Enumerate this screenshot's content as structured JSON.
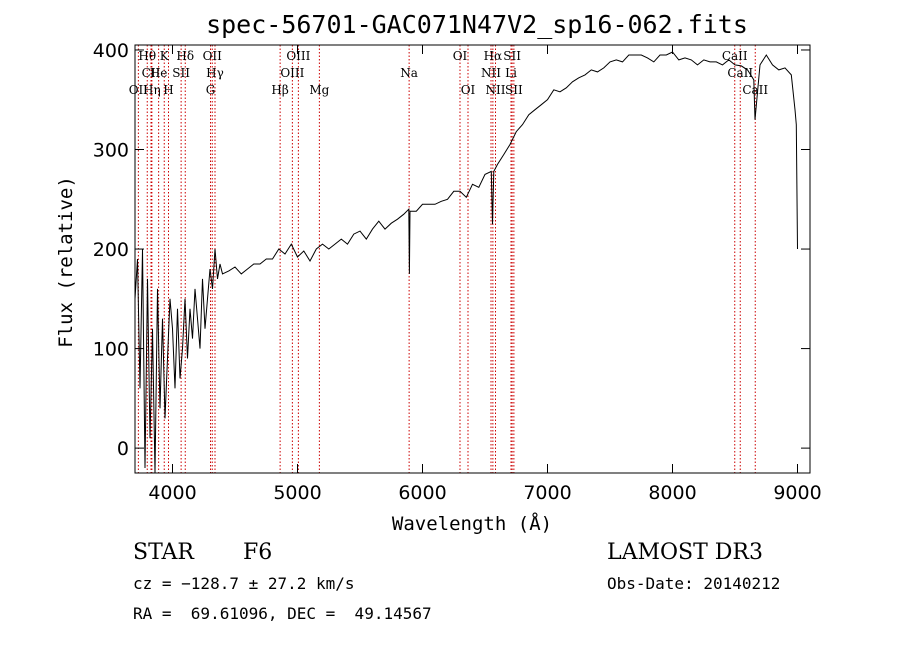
{
  "chart_data": {
    "type": "line",
    "title": "spec-56701-GAC071N47V2_sp16-062.fits",
    "xlabel": "Wavelength (Å)",
    "ylabel": "Flux (relative)",
    "xlim": [
      3700,
      9100
    ],
    "ylim": [
      -25,
      405
    ],
    "xticks": [
      4000,
      5000,
      6000,
      7000,
      8000,
      9000
    ],
    "yticks": [
      0,
      100,
      200,
      300,
      400
    ],
    "series": [
      {
        "name": "flux",
        "x": [
          3700,
          3720,
          3740,
          3760,
          3780,
          3800,
          3820,
          3840,
          3860,
          3880,
          3900,
          3920,
          3940,
          3960,
          3980,
          4000,
          4020,
          4040,
          4060,
          4080,
          4100,
          4120,
          4140,
          4160,
          4180,
          4200,
          4220,
          4240,
          4260,
          4280,
          4300,
          4320,
          4340,
          4360,
          4380,
          4400,
          4450,
          4500,
          4550,
          4600,
          4650,
          4700,
          4750,
          4800,
          4850,
          4900,
          4950,
          5000,
          5050,
          5100,
          5150,
          5200,
          5250,
          5300,
          5350,
          5400,
          5450,
          5500,
          5550,
          5600,
          5650,
          5700,
          5750,
          5800,
          5850,
          5890,
          5895,
          5900,
          5950,
          6000,
          6050,
          6100,
          6150,
          6200,
          6250,
          6300,
          6350,
          6400,
          6450,
          6500,
          6550,
          6560,
          6570,
          6600,
          6650,
          6700,
          6750,
          6800,
          6850,
          6900,
          6950,
          7000,
          7050,
          7100,
          7150,
          7200,
          7250,
          7300,
          7350,
          7400,
          7450,
          7500,
          7550,
          7600,
          7650,
          7700,
          7750,
          7800,
          7850,
          7900,
          7950,
          8000,
          8050,
          8100,
          8150,
          8200,
          8250,
          8300,
          8350,
          8400,
          8450,
          8500,
          8550,
          8600,
          8650,
          8660,
          8700,
          8750,
          8800,
          8850,
          8900,
          8950,
          8980,
          8990,
          9000
        ],
        "values": [
          150,
          190,
          60,
          200,
          -20,
          170,
          10,
          120,
          -25,
          160,
          40,
          130,
          30,
          90,
          150,
          120,
          60,
          140,
          70,
          100,
          150,
          90,
          140,
          110,
          160,
          130,
          100,
          170,
          120,
          150,
          180,
          160,
          200,
          170,
          185,
          175,
          178,
          182,
          175,
          180,
          185,
          185,
          190,
          190,
          200,
          195,
          205,
          192,
          198,
          188,
          200,
          205,
          200,
          205,
          210,
          205,
          215,
          218,
          210,
          220,
          228,
          220,
          226,
          230,
          235,
          240,
          175,
          238,
          238,
          245,
          245,
          245,
          248,
          250,
          258,
          258,
          252,
          265,
          262,
          275,
          278,
          225,
          278,
          285,
          295,
          305,
          318,
          325,
          335,
          340,
          345,
          350,
          360,
          358,
          362,
          368,
          372,
          375,
          380,
          378,
          382,
          388,
          390,
          388,
          395,
          395,
          395,
          392,
          388,
          395,
          395,
          398,
          390,
          392,
          390,
          385,
          390,
          388,
          388,
          385,
          390,
          385,
          384,
          380,
          370,
          330,
          385,
          395,
          385,
          380,
          382,
          375,
          340,
          325,
          200
        ],
        "stroke": "#000000"
      }
    ],
    "line_color": "#cc0000",
    "lines": [
      {
        "label": "Hθ",
        "x": 3798,
        "row": 1
      },
      {
        "label": "K",
        "x": 3934,
        "row": 1
      },
      {
        "label": "Hδ",
        "x": 4102,
        "row": 1
      },
      {
        "label": "OII",
        "x": 4318,
        "row": 1
      },
      {
        "label": "OIII",
        "x": 5007,
        "row": 1
      },
      {
        "label": "OI",
        "x": 6300,
        "row": 1
      },
      {
        "label": "Hα",
        "x": 6563,
        "row": 1
      },
      {
        "label": "SII",
        "x": 6717,
        "row": 1
      },
      {
        "label": "CaII",
        "x": 8498,
        "row": 1
      },
      {
        "label": "CII",
        "x": 3828,
        "row": 2
      },
      {
        "label": "He",
        "x": 3889,
        "row": 2
      },
      {
        "label": "SII",
        "x": 4069,
        "row": 2
      },
      {
        "label": "Hγ",
        "x": 4340,
        "row": 2
      },
      {
        "label": "OIII",
        "x": 4959,
        "row": 2
      },
      {
        "label": "Na",
        "x": 5893,
        "row": 2
      },
      {
        "label": "NII",
        "x": 6548,
        "row": 2
      },
      {
        "label": "Li",
        "x": 6708,
        "row": 2
      },
      {
        "label": "CaII",
        "x": 8542,
        "row": 2
      },
      {
        "label": "OII",
        "x": 3727,
        "row": 3
      },
      {
        "label": "Hη",
        "x": 3835,
        "row": 3
      },
      {
        "label": "H",
        "x": 3968,
        "row": 3
      },
      {
        "label": "G",
        "x": 4304,
        "row": 3
      },
      {
        "label": "Hβ",
        "x": 4861,
        "row": 3
      },
      {
        "label": "Mg",
        "x": 5175,
        "row": 3
      },
      {
        "label": "OI",
        "x": 6364,
        "row": 3
      },
      {
        "label": "NII",
        "x": 6584,
        "row": 3
      },
      {
        "label": "SII",
        "x": 6731,
        "row": 3
      },
      {
        "label": "CaII",
        "x": 8662,
        "row": 3
      }
    ]
  },
  "info": {
    "class": "STAR",
    "subclass": "F6",
    "survey": "LAMOST DR3",
    "cz": "cz = −128.7 ± 27.2 km/s",
    "obs_date": "Obs-Date: 20140212",
    "coords": "RA =  69.61096, DEC =  49.14567"
  }
}
